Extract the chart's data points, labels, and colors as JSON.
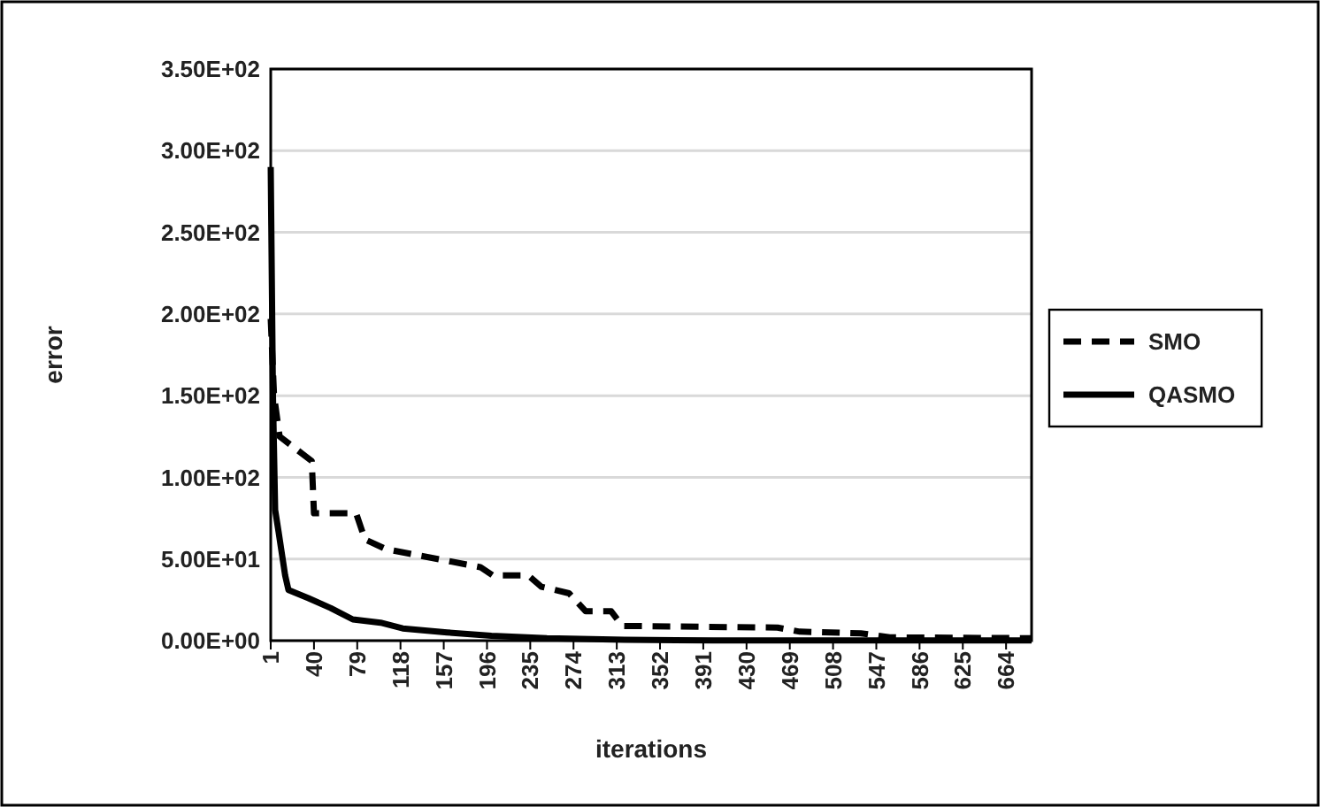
{
  "chart_data": {
    "type": "line",
    "xlabel": "iterations",
    "ylabel": "error",
    "xlim": [
      1,
      687
    ],
    "xticks": [
      1,
      40,
      79,
      118,
      157,
      196,
      235,
      274,
      313,
      352,
      391,
      430,
      469,
      508,
      547,
      586,
      625,
      664
    ],
    "ylim": [
      0,
      350
    ],
    "yticks": [
      {
        "value": 0,
        "label": "0.00E+00"
      },
      {
        "value": 50,
        "label": "5.00E+01"
      },
      {
        "value": 100,
        "label": "1.00E+02"
      },
      {
        "value": 150,
        "label": "1.50E+02"
      },
      {
        "value": 200,
        "label": "2.00E+02"
      },
      {
        "value": 250,
        "label": "2.50E+02"
      },
      {
        "value": 300,
        "label": "3.00E+02"
      },
      {
        "value": 350,
        "label": "3.50E+02"
      }
    ],
    "grid": "y",
    "legend": "right",
    "marker": "none",
    "series": [
      {
        "name": "SMO",
        "color": "#000000",
        "line_style": "dashed",
        "x": [
          1,
          4,
          9,
          38,
          40,
          78,
          86,
          105,
          190,
          201,
          233,
          245,
          270,
          285,
          308,
          318,
          458,
          478,
          533,
          559,
          687
        ],
        "values": [
          197,
          150,
          125,
          110,
          78,
          78,
          62,
          56,
          45,
          40,
          40,
          33,
          29,
          18,
          18,
          9,
          8,
          5.5,
          4.5,
          2,
          1.5
        ]
      },
      {
        "name": "QASMO",
        "color": "#000000",
        "line_style": "solid",
        "x": [
          1,
          3,
          5,
          8,
          14,
          17,
          35,
          55,
          75,
          100,
          120,
          160,
          200,
          250,
          320,
          400,
          687
        ],
        "values": [
          290,
          150,
          80,
          67,
          40,
          31,
          26,
          20,
          13,
          11,
          7.5,
          5,
          3,
          1.5,
          0.5,
          0.2,
          0.1
        ]
      }
    ]
  }
}
